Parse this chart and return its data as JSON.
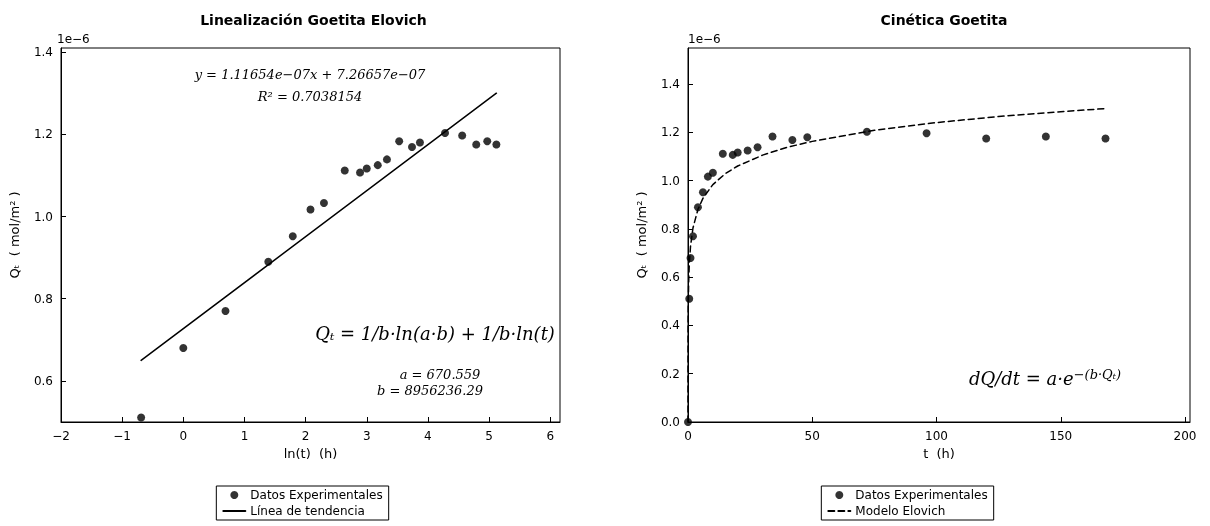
{
  "chart_data": [
    {
      "type": "scatter",
      "title": "Linealización Goetita Elovich",
      "xlabel": "ln(t)  (h)",
      "ylabel": "Qₜ  ( mol/m² )",
      "xlim": [
        -2,
        6.16
      ],
      "ylim": [
        0.5,
        1.41
      ],
      "xticks": [
        {
          "value": -2,
          "label": "−2"
        },
        {
          "value": -1,
          "label": "−1"
        },
        0,
        1,
        2,
        3,
        4,
        5,
        6
      ],
      "yticks": [
        {
          "value": 0.6,
          "label": "0.6"
        },
        {
          "value": 0.8,
          "label": "0.8"
        },
        {
          "value": 1,
          "label": "1.0"
        },
        {
          "value": 1.2,
          "label": "1.2"
        },
        {
          "value": 1.4,
          "label": "1.4"
        }
      ],
      "legend": "bottom",
      "series": [
        {
          "name": "Datos Experimentales",
          "marker": "circle",
          "color": "#000000",
          "x": [
            -0.69,
            0,
            0.69,
            1.39,
            1.79,
            2.08,
            2.3,
            2.64,
            2.89,
            3.0,
            3.18,
            3.33,
            3.53,
            3.74,
            3.87,
            4.28,
            4.56,
            4.79,
            4.97,
            5.12
          ],
          "values": [
            0.511,
            0.68,
            0.77,
            0.89,
            0.952,
            1.017,
            1.033,
            1.112,
            1.107,
            1.117,
            1.125,
            1.139,
            1.183,
            1.169,
            1.18,
            1.203,
            1.197,
            1.175,
            1.183,
            1.175
          ]
        },
        {
          "name": "Línea de tendencia",
          "type": "line",
          "marker": "none",
          "color": "#000000",
          "line_style": "solid",
          "x": [
            -0.69,
            5.12
          ],
          "values": [
            0.65,
            1.3
          ]
        }
      ],
      "annotations": [
        "1e−6",
        "y = 1.11654e−07x + 7.26657e−07",
        "R² = 0.7038154",
        "Qₜ = 1/b·ln(a·b) + 1/b·ln(t)",
        "a = 670.559",
        "b = 8956236.29"
      ]
    },
    {
      "type": "scatter",
      "title": "Cinética Goetita",
      "xlabel": "t  (h)",
      "ylabel": "Qₜ  ( mol/m² )",
      "xlim": [
        0,
        202
      ],
      "ylim": [
        0,
        1.55
      ],
      "xticks": [
        0,
        50,
        100,
        150,
        200
      ],
      "yticks": [
        {
          "value": 0,
          "label": "0.0"
        },
        {
          "value": 0.2,
          "label": "0.2"
        },
        {
          "value": 0.4,
          "label": "0.4"
        },
        {
          "value": 0.6,
          "label": "0.6"
        },
        {
          "value": 0.8,
          "label": "0.8"
        },
        {
          "value": 1,
          "label": "1.0"
        },
        {
          "value": 1.2,
          "label": "1.2"
        },
        {
          "value": 1.4,
          "label": "1.4"
        }
      ],
      "legend": "bottom",
      "series": [
        {
          "name": "Datos Experimentales",
          "marker": "circle",
          "color": "#000000",
          "x": [
            0,
            0.5,
            1,
            2,
            4,
            6,
            8,
            10,
            14,
            18,
            20,
            24,
            28,
            34,
            42,
            48,
            72,
            96,
            120,
            144,
            168
          ],
          "values": [
            0,
            0.511,
            0.68,
            0.77,
            0.89,
            0.952,
            1.017,
            1.033,
            1.112,
            1.107,
            1.117,
            1.125,
            1.139,
            1.183,
            1.169,
            1.18,
            1.203,
            1.197,
            1.175,
            1.183,
            1.175
          ]
        },
        {
          "name": "Modelo Elovich",
          "type": "line",
          "marker": "none",
          "color": "#000000",
          "line_style": "dashed",
          "x": [
            0.0015,
            0.01,
            0.05,
            0.1,
            0.25,
            0.5,
            1,
            2,
            4,
            6,
            10,
            15,
            20,
            30,
            40,
            50,
            75,
            100,
            125,
            150,
            168
          ],
          "values": [
            0,
            0.213,
            0.392,
            0.47,
            0.572,
            0.649,
            0.727,
            0.804,
            0.881,
            0.927,
            0.984,
            1.029,
            1.061,
            1.106,
            1.139,
            1.163,
            1.209,
            1.241,
            1.266,
            1.286,
            1.299
          ]
        }
      ],
      "annotations": [
        "1e−6",
        "dQ/dt = a·e$^{−(b·Qₜ)}$"
      ]
    }
  ]
}
